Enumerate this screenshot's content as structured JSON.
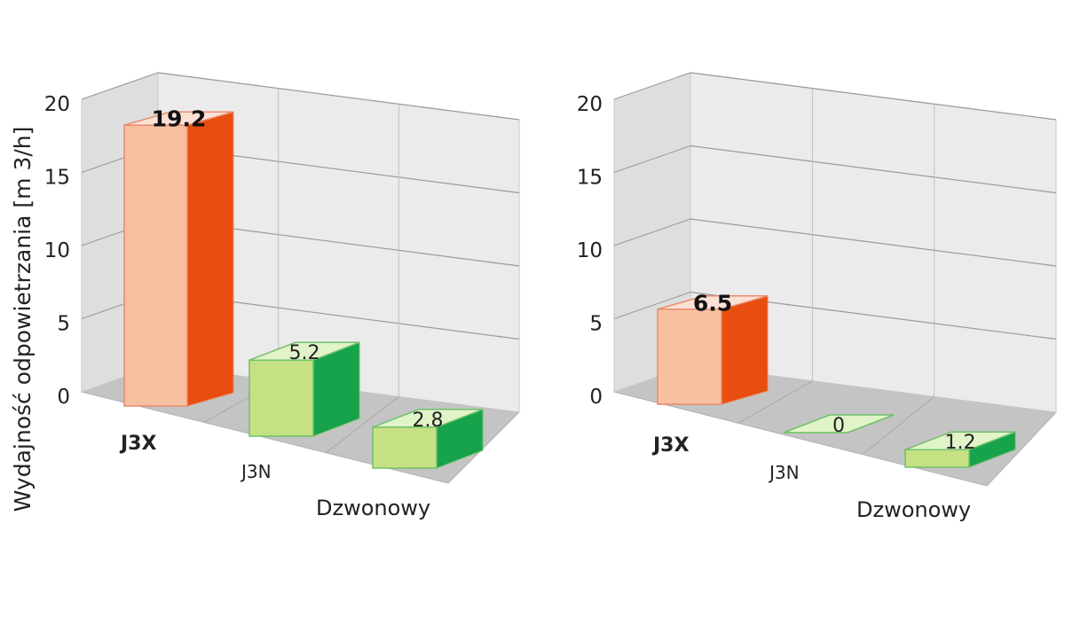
{
  "ylabel": "Wydajność odpowietrzania [m 3/h]",
  "chart_data": [
    {
      "type": "bar",
      "title": "",
      "xlabel": "",
      "ylabel": "Wydajność odpowietrzania [m 3/h]",
      "ylim": [
        0,
        20
      ],
      "yticks": [
        "0",
        "5",
        "10",
        "15",
        "20"
      ],
      "grid": true,
      "categories": [
        "J3X",
        "J3N",
        "Dzwonowy"
      ],
      "values": [
        19.2,
        5.2,
        2.8
      ],
      "value_labels": [
        "19.2",
        "5.2",
        "2.8"
      ],
      "highlight_category": "J3X",
      "colors": {
        "highlight_front": "#f8c0a0",
        "highlight_side": "#e84e10",
        "highlight_top": "#fbe0d6",
        "other_front": "#c5e183",
        "other_side": "#17a34c",
        "other_top": "#e1f3c9"
      }
    },
    {
      "type": "bar",
      "title": "",
      "xlabel": "",
      "ylabel": "",
      "ylim": [
        0,
        20
      ],
      "yticks": [
        "0",
        "5",
        "10",
        "15",
        "20"
      ],
      "grid": true,
      "categories": [
        "J3X",
        "J3N",
        "Dzwonowy"
      ],
      "values": [
        6.5,
        0,
        1.2
      ],
      "value_labels": [
        "6.5",
        "0",
        "1.2"
      ],
      "highlight_category": "J3X",
      "colors": {
        "highlight_front": "#f8c0a0",
        "highlight_side": "#e84e10",
        "highlight_top": "#fbe0d6",
        "other_front": "#c5e183",
        "other_side": "#17a34c",
        "other_top": "#e1f3c9"
      }
    }
  ]
}
